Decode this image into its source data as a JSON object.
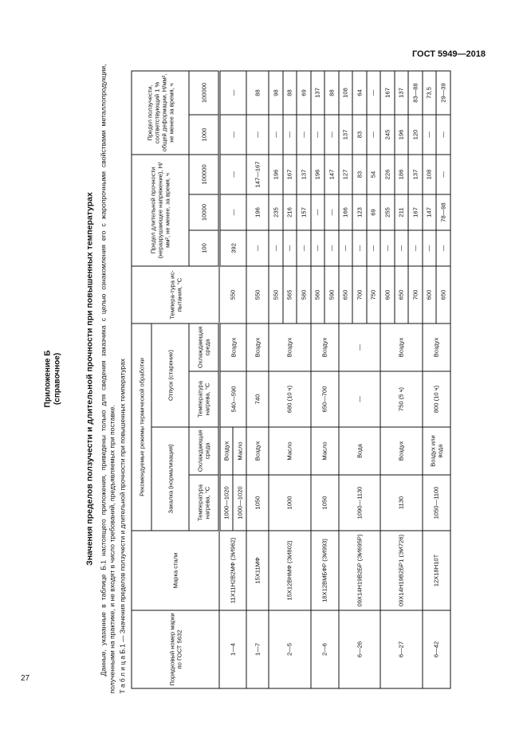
{
  "header": {
    "standard": "ГОСТ 5949—2018",
    "page_number": "27"
  },
  "appendix": {
    "title": "Приложение Б",
    "subtitle": "(справочное)"
  },
  "section_title": "Значения пределов ползучести и длительной прочности при повышенных температурах",
  "paragraph": "Данные, указанные в таблице Б.1 настоящего приложения, приведены только для сведения заказчика с целью ознакомления его с жаропрочными свойствами металлопродукции, полученными на практике, и не входят в число требований, предъявляемых при поставке.",
  "table_caption": "Т а б л и ц а  Б.1 — Значения пределов ползучести и длительной прочности при повышенных температурах",
  "table": {
    "headers": {
      "order_no": "Порядковый номер марки по ГОСТ 5632",
      "grade": "Марка стали",
      "heat_treatment": "Рекомендуемые режимы термической обработки",
      "quench": "Закалка (нормализация)",
      "temper": "Отпуск (старение)",
      "heat_temp": "Температура нагрева, °С",
      "cool_medium": "Охлаждающая среда",
      "test_temp": "Темпера-тура ис-пытания, °С",
      "rupture": "Предел длительной прочности (неразрушающее напряжение), Н/мм², не менее, за время, ч",
      "creep": "Предел ползучести, соответствующий 1 % общей деформации, Н/мм², не менее за время, ч",
      "rupture_times": [
        "100",
        "10000",
        "100000"
      ],
      "creep_times": [
        "1000",
        "100000"
      ]
    },
    "groups": [
      {
        "no": "1—4",
        "grade": "11Х11Н2В2МФ (ЭИ962)",
        "quench": [
          [
            "1000—1020",
            "Воздух"
          ],
          [
            "1000—1020",
            "Масло"
          ]
        ],
        "temper": [
          "540—590",
          "Воздух"
        ],
        "rows": [
          [
            "550",
            "392",
            "—",
            "—",
            "—",
            "—"
          ]
        ]
      },
      {
        "no": "1—7",
        "grade": "15Х11МФ",
        "quench": [
          [
            "1050",
            "Воздух"
          ]
        ],
        "temper": [
          "740",
          "Воздух"
        ],
        "rows": [
          [
            "550",
            "—",
            "196",
            "147—167",
            "—",
            "88"
          ]
        ]
      },
      {
        "no": "2—5",
        "grade": "15Х12ВНМФ (ЭИ802)",
        "quench": [
          [
            "1000",
            "Масло"
          ]
        ],
        "temper": [
          "680 (10 ч)",
          "Воздух"
        ],
        "rows": [
          [
            "550",
            "—",
            "235",
            "196",
            "—",
            "98"
          ],
          [
            "565",
            "—",
            "216",
            "167",
            "—",
            "88"
          ],
          [
            "580",
            "—",
            "157",
            "137",
            "—",
            "69"
          ]
        ]
      },
      {
        "no": "2—6",
        "grade": "18Х12ВМБФР (ЭИ993)",
        "quench": [
          [
            "1050",
            "Масло"
          ]
        ],
        "temper": [
          "650—700",
          "Воздух"
        ],
        "rows": [
          [
            "560",
            "—",
            "—",
            "196",
            "—",
            "137"
          ],
          [
            "590",
            "—",
            "—",
            "147",
            "—",
            "88"
          ]
        ]
      },
      {
        "no": "6—26",
        "grade": "09Х14Н19В2БР (ЭИ695Р)",
        "quench": [
          [
            "1090—1130",
            "Вода"
          ]
        ],
        "temper": [
          "—",
          "—"
        ],
        "rows": [
          [
            "650",
            "—",
            "166",
            "127",
            "137",
            "108"
          ],
          [
            "700",
            "—",
            "123",
            "83",
            "83",
            "64"
          ],
          [
            "750",
            "—",
            "69",
            "54",
            "—",
            "—"
          ]
        ]
      },
      {
        "no": "6—27",
        "grade": "09Х14Н19В2БР1 (ЭИ726)",
        "quench": [
          [
            "1130",
            "Воздух"
          ]
        ],
        "temper": [
          "750 (5 ч)",
          "Воздух"
        ],
        "rows": [
          [
            "600",
            "—",
            "255",
            "226",
            "245",
            "167"
          ],
          [
            "650",
            "—",
            "211",
            "186",
            "196",
            "137"
          ],
          [
            "700",
            "—",
            "167",
            "137",
            "120",
            "83—88"
          ]
        ]
      },
      {
        "no": "6—42",
        "grade": "12Х18Н10Т",
        "quench": [
          [
            "1050—1100",
            "Воздух или вода"
          ]
        ],
        "temper": [
          "800 (10 ч)",
          "Воздух"
        ],
        "rows": [
          [
            "600",
            "—",
            "147",
            "108",
            "—",
            "73,5"
          ],
          [
            "650",
            "—",
            "78—98",
            "—",
            "—",
            "29—39"
          ]
        ]
      }
    ]
  }
}
